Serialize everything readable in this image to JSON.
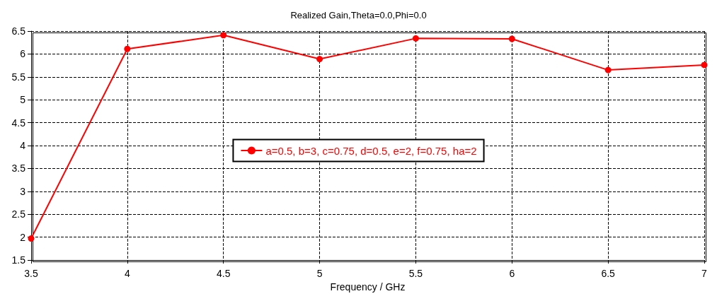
{
  "chart_data": {
    "type": "line",
    "title": "Realized Gain,Theta=0.0,Phi=0.0",
    "xlabel": "Frequency / GHz",
    "x": [
      3.5,
      4,
      4.5,
      5,
      5.5,
      6,
      6.5,
      7
    ],
    "series": [
      {
        "name": "a=0.5, b=3, c=0.75, d=0.5, e=2, f=0.75, ha=2",
        "color": "#ff0000",
        "values": [
          1.97,
          6.11,
          6.41,
          5.89,
          6.34,
          6.33,
          5.65,
          5.76
        ]
      }
    ],
    "xlim": [
      3.5,
      7
    ],
    "xticks": [
      3.5,
      4,
      4.5,
      5,
      5.5,
      6,
      6.5,
      7
    ],
    "ylim": [
      1.5,
      6.5
    ],
    "yticks": [
      1.5,
      2,
      2.5,
      3,
      3.5,
      4,
      4.5,
      5,
      5.5,
      6,
      6.5
    ],
    "grid": true,
    "legend": "center",
    "marker": "circle",
    "line_style": "solid"
  }
}
